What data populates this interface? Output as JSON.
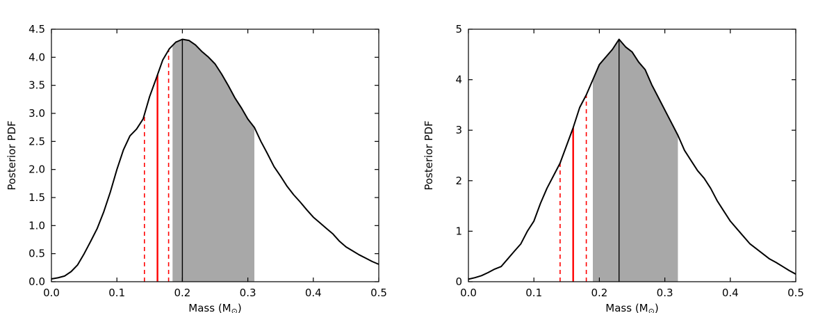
{
  "figure": {
    "background_color": "#ffffff",
    "description_left_panel": "posterior-pdf-left",
    "description_right_panel": "posterior-pdf-right"
  },
  "chart_data": [
    {
      "type": "line",
      "title": "",
      "xlabel": "Mass (M⊙)",
      "ylabel": "Posterior PDF",
      "xlim": [
        0.0,
        0.5
      ],
      "ylim": [
        0.0,
        4.5
      ],
      "grid": false,
      "legend": "none",
      "line_color": "#000000",
      "xticks": [
        0.0,
        0.1,
        0.2,
        0.3,
        0.4,
        0.5
      ],
      "xtick_labels": [
        "0.0",
        "0.1",
        "0.2",
        "0.3",
        "0.4",
        "0.5"
      ],
      "yticks": [
        0.0,
        0.5,
        1.0,
        1.5,
        2.0,
        2.5,
        3.0,
        3.5,
        4.0,
        4.5
      ],
      "ytick_labels": [
        "0.0",
        "0.5",
        "1.0",
        "1.5",
        "2.0",
        "2.5",
        "3.0",
        "3.5",
        "4.0",
        "4.5"
      ],
      "shaded_region": {
        "x_from": 0.185,
        "x_to": 0.31,
        "color": "#a8a8a8"
      },
      "vlines": [
        {
          "x": 0.2,
          "color": "#000000",
          "style": "solid",
          "width": 1.4
        },
        {
          "x": 0.162,
          "color": "#ff0000",
          "style": "solid",
          "width": 2.4
        },
        {
          "x": 0.142,
          "color": "#ff0000",
          "style": "dashed",
          "width": 1.6
        },
        {
          "x": 0.179,
          "color": "#ff0000",
          "style": "dashed",
          "width": 1.6
        }
      ],
      "x": [
        0.0,
        0.01,
        0.02,
        0.03,
        0.04,
        0.05,
        0.06,
        0.07,
        0.08,
        0.09,
        0.1,
        0.11,
        0.12,
        0.13,
        0.14,
        0.15,
        0.16,
        0.17,
        0.18,
        0.19,
        0.2,
        0.21,
        0.22,
        0.23,
        0.24,
        0.25,
        0.26,
        0.27,
        0.28,
        0.29,
        0.3,
        0.31,
        0.32,
        0.33,
        0.34,
        0.35,
        0.36,
        0.37,
        0.38,
        0.39,
        0.4,
        0.41,
        0.42,
        0.43,
        0.44,
        0.45,
        0.46,
        0.47,
        0.48,
        0.49,
        0.5
      ],
      "y": [
        0.05,
        0.07,
        0.1,
        0.18,
        0.3,
        0.5,
        0.72,
        0.95,
        1.25,
        1.6,
        2.0,
        2.35,
        2.6,
        2.72,
        2.9,
        3.3,
        3.62,
        3.95,
        4.15,
        4.27,
        4.32,
        4.3,
        4.22,
        4.1,
        4.0,
        3.88,
        3.7,
        3.5,
        3.28,
        3.1,
        2.9,
        2.75,
        2.5,
        2.28,
        2.05,
        1.88,
        1.7,
        1.55,
        1.42,
        1.28,
        1.15,
        1.05,
        0.95,
        0.85,
        0.72,
        0.62,
        0.55,
        0.48,
        0.42,
        0.36,
        0.31
      ]
    },
    {
      "type": "line",
      "title": "",
      "xlabel": "Mass (M⊙)",
      "ylabel": "Posterior PDF",
      "xlim": [
        0.0,
        0.5
      ],
      "ylim": [
        0.0,
        5.0
      ],
      "grid": false,
      "legend": "none",
      "line_color": "#000000",
      "xticks": [
        0.0,
        0.1,
        0.2,
        0.3,
        0.4,
        0.5
      ],
      "xtick_labels": [
        "0.0",
        "0.1",
        "0.2",
        "0.3",
        "0.4",
        "0.5"
      ],
      "yticks": [
        0,
        1,
        2,
        3,
        4,
        5
      ],
      "ytick_labels": [
        "0",
        "1",
        "2",
        "3",
        "4",
        "5"
      ],
      "shaded_region": {
        "x_from": 0.19,
        "x_to": 0.32,
        "color": "#a8a8a8"
      },
      "vlines": [
        {
          "x": 0.23,
          "color": "#000000",
          "style": "solid",
          "width": 1.4
        },
        {
          "x": 0.16,
          "color": "#ff0000",
          "style": "solid",
          "width": 2.4
        },
        {
          "x": 0.14,
          "color": "#ff0000",
          "style": "dashed",
          "width": 1.6
        },
        {
          "x": 0.18,
          "color": "#ff0000",
          "style": "dashed",
          "width": 1.6
        }
      ],
      "x": [
        0.0,
        0.01,
        0.02,
        0.03,
        0.04,
        0.05,
        0.06,
        0.07,
        0.08,
        0.09,
        0.1,
        0.11,
        0.12,
        0.13,
        0.14,
        0.15,
        0.16,
        0.17,
        0.18,
        0.19,
        0.2,
        0.21,
        0.22,
        0.23,
        0.24,
        0.25,
        0.26,
        0.27,
        0.28,
        0.29,
        0.3,
        0.31,
        0.32,
        0.33,
        0.34,
        0.35,
        0.36,
        0.37,
        0.38,
        0.39,
        0.4,
        0.41,
        0.42,
        0.43,
        0.44,
        0.45,
        0.46,
        0.47,
        0.48,
        0.49,
        0.5
      ],
      "y": [
        0.05,
        0.08,
        0.12,
        0.18,
        0.25,
        0.3,
        0.45,
        0.6,
        0.75,
        1.0,
        1.2,
        1.55,
        1.85,
        2.1,
        2.35,
        2.7,
        3.05,
        3.45,
        3.7,
        4.0,
        4.3,
        4.45,
        4.6,
        4.8,
        4.65,
        4.55,
        4.35,
        4.2,
        3.9,
        3.65,
        3.4,
        3.15,
        2.9,
        2.6,
        2.4,
        2.2,
        2.05,
        1.85,
        1.6,
        1.4,
        1.2,
        1.05,
        0.9,
        0.75,
        0.65,
        0.55,
        0.45,
        0.38,
        0.3,
        0.22,
        0.15
      ]
    }
  ]
}
